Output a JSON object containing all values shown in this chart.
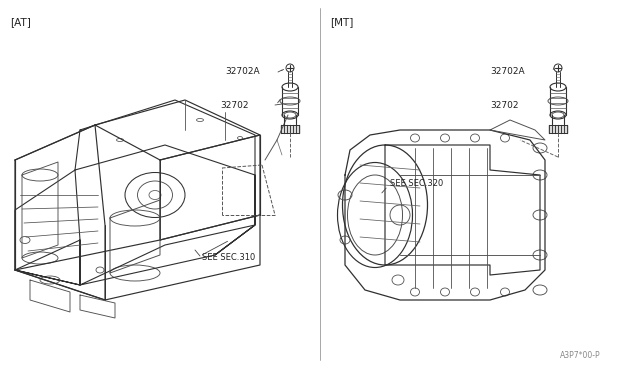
{
  "bg_color": "#f5f5f0",
  "line_color": "#404040",
  "text_color": "#202020",
  "label_at": "[AT]",
  "label_mt": "[MT]",
  "part_32702": "32702",
  "part_32702a": "32702A",
  "ref_sec310": "SEE SEC.310",
  "ref_sec320": "SEE SEC.320",
  "diagram_code": "A3P7*00-P",
  "fig_width": 6.4,
  "fig_height": 3.72,
  "dpi": 100
}
